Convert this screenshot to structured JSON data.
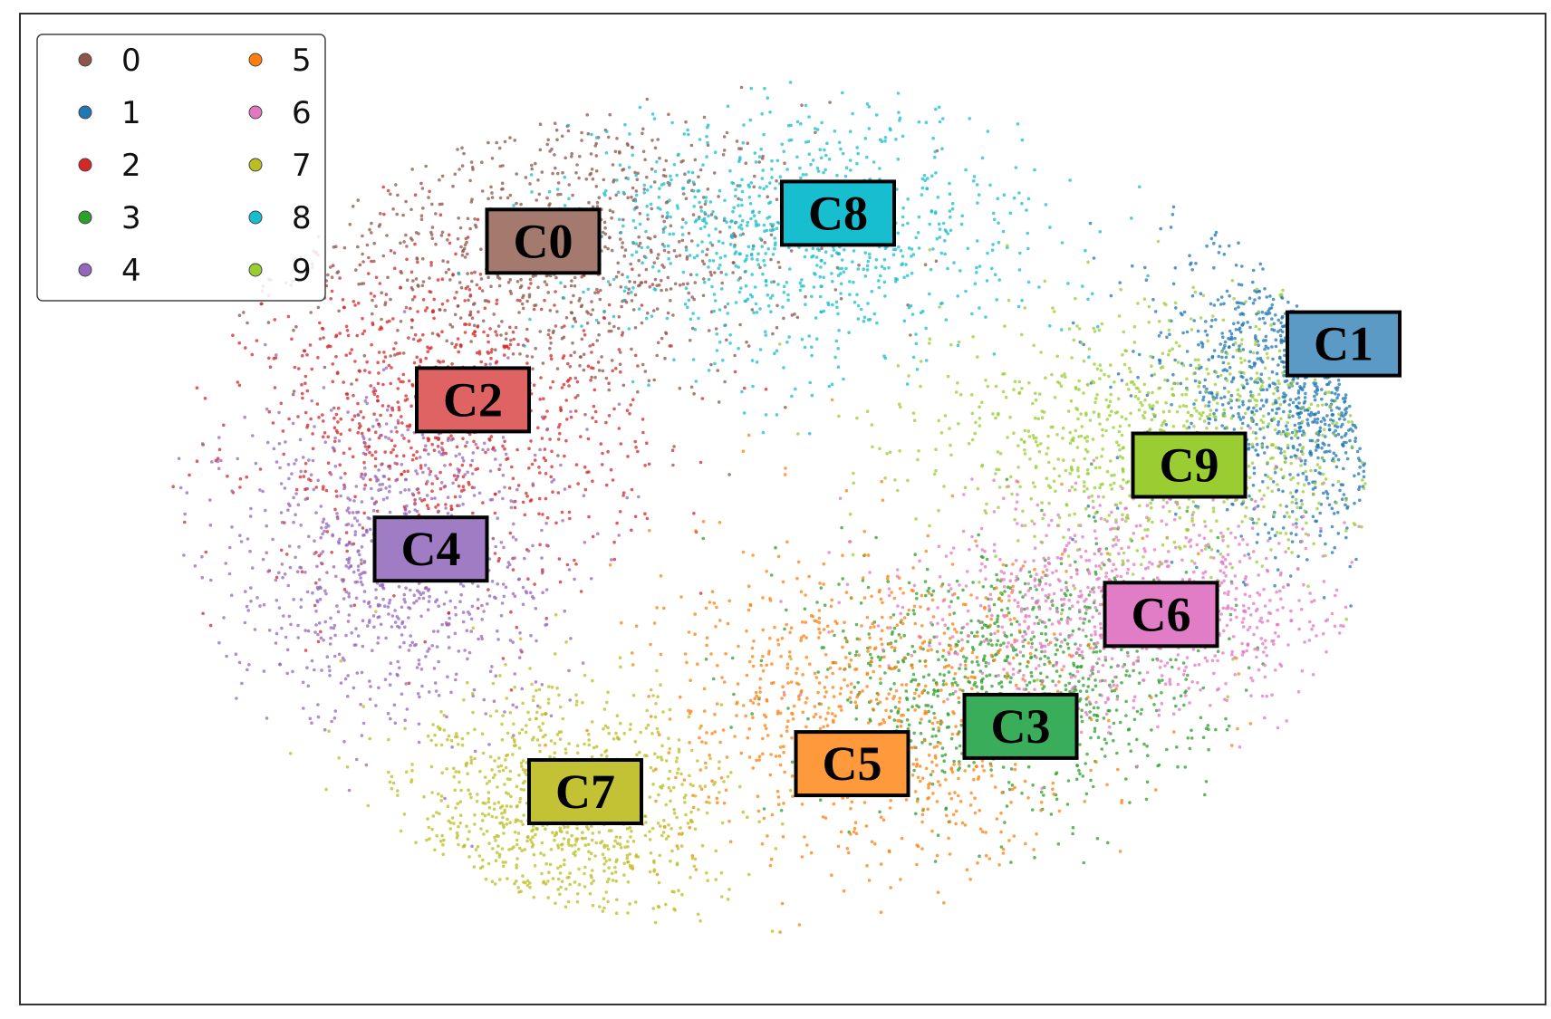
{
  "chart_data": {
    "type": "scatter",
    "title": "",
    "xlabel": "",
    "ylabel": "",
    "grid": false,
    "axis_ticks": false,
    "legend": {
      "placement": "top-left",
      "columns": 2,
      "entries": [
        {
          "label": "0",
          "color": "#8c564b"
        },
        {
          "label": "1",
          "color": "#1f77b4"
        },
        {
          "label": "2",
          "color": "#d62728"
        },
        {
          "label": "3",
          "color": "#2ca02c"
        },
        {
          "label": "4",
          "color": "#9467bd"
        },
        {
          "label": "5",
          "color": "#ff7f0e"
        },
        {
          "label": "6",
          "color": "#e377c2"
        },
        {
          "label": "7",
          "color": "#bcbd22"
        },
        {
          "label": "8",
          "color": "#17becf"
        },
        {
          "label": "9",
          "color": "#9acd32"
        }
      ]
    },
    "series": [
      {
        "name": "0",
        "color": "#8c564b",
        "center": [
          0.3,
          0.78
        ],
        "spread": [
          0.09,
          0.08
        ]
      },
      {
        "name": "1",
        "color": "#1f77b4",
        "center": [
          0.86,
          0.66
        ],
        "spread": [
          0.06,
          0.09
        ]
      },
      {
        "name": "2",
        "color": "#d62728",
        "center": [
          0.22,
          0.6
        ],
        "spread": [
          0.07,
          0.09
        ]
      },
      {
        "name": "3",
        "color": "#2ca02c",
        "center": [
          0.63,
          0.32
        ],
        "spread": [
          0.07,
          0.07
        ]
      },
      {
        "name": "4",
        "color": "#9467bd",
        "center": [
          0.18,
          0.45
        ],
        "spread": [
          0.06,
          0.09
        ]
      },
      {
        "name": "5",
        "color": "#ff7f0e",
        "center": [
          0.53,
          0.28
        ],
        "spread": [
          0.08,
          0.09
        ]
      },
      {
        "name": "6",
        "color": "#e377c2",
        "center": [
          0.72,
          0.4
        ],
        "spread": [
          0.08,
          0.06
        ]
      },
      {
        "name": "7",
        "color": "#bcbd22",
        "center": [
          0.3,
          0.17
        ],
        "spread": [
          0.06,
          0.07
        ]
      },
      {
        "name": "8",
        "color": "#17becf",
        "center": [
          0.48,
          0.8
        ],
        "spread": [
          0.08,
          0.07
        ]
      },
      {
        "name": "9",
        "color": "#9acd32",
        "center": [
          0.74,
          0.58
        ],
        "spread": [
          0.09,
          0.07
        ]
      }
    ],
    "annotations": [
      {
        "label": "C0",
        "series": "0",
        "color": "#a47a6e",
        "at": [
          0.29,
          0.79
        ]
      },
      {
        "label": "C1",
        "series": "1",
        "color": "#5b9ac4",
        "at": [
          0.86,
          0.68
        ]
      },
      {
        "label": "C2",
        "series": "2",
        "color": "#e06363",
        "at": [
          0.24,
          0.62
        ]
      },
      {
        "label": "C3",
        "series": "3",
        "color": "#3aad5a",
        "at": [
          0.63,
          0.27
        ]
      },
      {
        "label": "C4",
        "series": "4",
        "color": "#a07cc4",
        "at": [
          0.21,
          0.46
        ]
      },
      {
        "label": "C5",
        "series": "5",
        "color": "#ff9a3c",
        "at": [
          0.51,
          0.23
        ]
      },
      {
        "label": "C6",
        "series": "6",
        "color": "#e17cc6",
        "at": [
          0.73,
          0.39
        ]
      },
      {
        "label": "C7",
        "series": "7",
        "color": "#c2c234",
        "at": [
          0.32,
          0.2
        ]
      },
      {
        "label": "C8",
        "series": "8",
        "color": "#17becf",
        "at": [
          0.5,
          0.82
        ]
      },
      {
        "label": "C9",
        "series": "9",
        "color": "#9acd32",
        "at": [
          0.75,
          0.55
        ]
      }
    ]
  }
}
